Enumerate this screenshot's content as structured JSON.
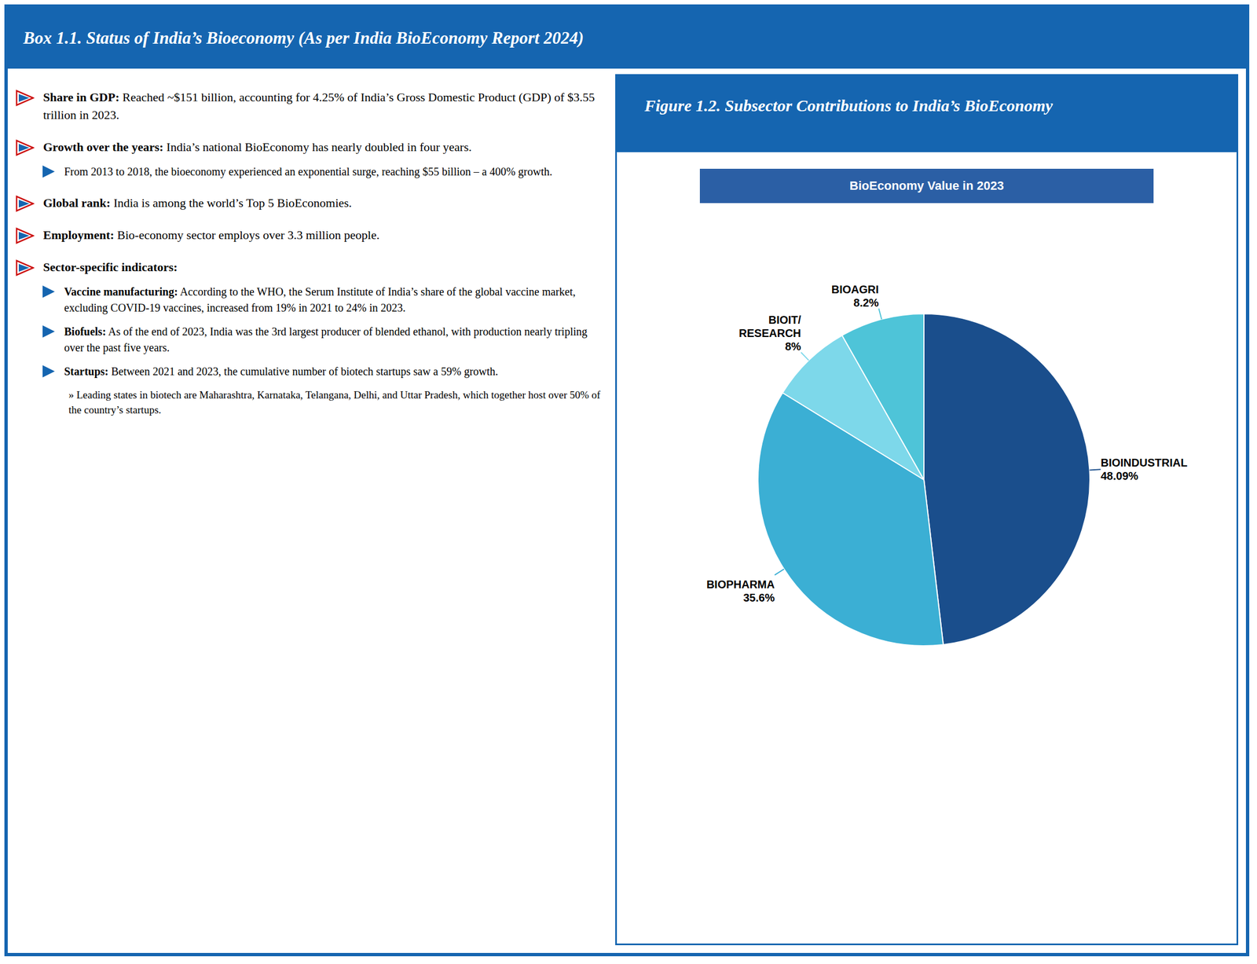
{
  "chart_data": {
    "type": "pie",
    "title": "Figure 1.2. Subsector Contributions to India’s BioEconomy",
    "subtitle": "BioEconomy Value in 2023",
    "categories": [
      "BIOINDUSTRIAL",
      "BIOPHARMA",
      "BIOIT/\nRESEARCH",
      "BIOAGRI"
    ],
    "values": [
      48.09,
      35.6,
      8.0,
      8.2
    ],
    "value_labels": [
      "48.09%",
      "35.6%",
      "8%",
      "8.2%"
    ],
    "colors": [
      "#1a4e8c",
      "#3bafd4",
      "#7dd8ea",
      "#4ec4d8"
    ],
    "data_labels": true,
    "annotations": [
      {
        "text": "Box 1.1. Status of India’s Bioeconomy (As per India BioEconomy Report 2024)",
        "items": [
          {
            "text": "Share in GDP: Reached ~$151 billion, accounting for 4.25% of India’s Gross Domestic Product (GDP) of $3.55 trillion in 2023."
          },
          {
            "text": "Growth over the years: India’s national BioEconomy has nearly doubled in four years.",
            "items": [
              {
                "text": "From 2013 to 2018, the bioeconomy experienced an exponential surge, reaching $55 billion – a 400% growth."
              }
            ]
          },
          {
            "text": "Global rank: India is among the world’s Top 5 BioEconomies."
          },
          {
            "text": "Employment: Bio-economy sector employs over 3.3 million people."
          },
          {
            "text": "Sector-specific indicators:",
            "items": [
              {
                "text": "Vaccine manufacturing: According to the WHO, the Serum Institute of India’s share of the global vaccine market, excluding COVID-19 vaccines, increased from 19% in 2021 to 24% in 2023."
              },
              {
                "text": "Biofuels: As of the end of 2023, India was the 3rd largest producer of blended ethanol, with production nearly tripling over the past five years."
              },
              {
                "text": "Startups: Between 2021 and 2023, the cumulative number of biotech startups saw a 59% growth.",
                "items": [
                  {
                    "text": "» Leading states in biotech are Maharashtra, Karnataka, Telangana, Delhi, and Uttar Pradesh, which together host over 50% of the country’s startups."
                  }
                ]
              }
            ]
          }
        ]
      }
    ]
  }
}
